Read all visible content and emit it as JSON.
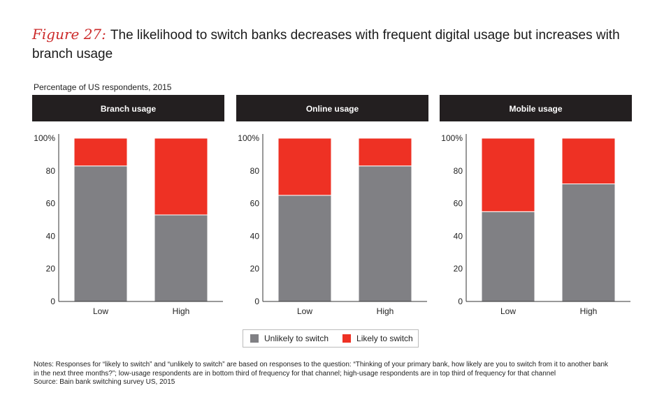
{
  "title": {
    "figure_label": "Figure 27:",
    "text": "The likelihood to switch banks decreases with frequent digital usage but increases with branch usage"
  },
  "subtitle": "Percentage of US respondents, 2015",
  "colors": {
    "unlikely": "#808084",
    "likely": "#ee3124",
    "header_bg": "#231f20",
    "header_text": "#ffffff",
    "axis": "#333333"
  },
  "legend": {
    "unlikely_label": "Unlikely to switch",
    "likely_label": "Likely to switch"
  },
  "chart_data": [
    {
      "type": "bar",
      "stacked": true,
      "title": "Branch usage",
      "categories": [
        "Low",
        "High"
      ],
      "series": [
        {
          "name": "Unlikely to switch",
          "values": [
            83,
            53
          ]
        },
        {
          "name": "Likely to switch",
          "values": [
            17,
            47
          ]
        }
      ],
      "ylim": [
        0,
        100
      ],
      "yticks": [
        0,
        20,
        40,
        60,
        80,
        100
      ],
      "ytick_labels": [
        "0",
        "20",
        "40",
        "60",
        "80",
        "100%"
      ]
    },
    {
      "type": "bar",
      "stacked": true,
      "title": "Online usage",
      "categories": [
        "Low",
        "High"
      ],
      "series": [
        {
          "name": "Unlikely to switch",
          "values": [
            65,
            83
          ]
        },
        {
          "name": "Likely to switch",
          "values": [
            35,
            17
          ]
        }
      ],
      "ylim": [
        0,
        100
      ],
      "yticks": [
        0,
        20,
        40,
        60,
        80,
        100
      ],
      "ytick_labels": [
        "0",
        "20",
        "40",
        "60",
        "80",
        "100%"
      ]
    },
    {
      "type": "bar",
      "stacked": true,
      "title": "Mobile usage",
      "categories": [
        "Low",
        "High"
      ],
      "series": [
        {
          "name": "Unlikely to switch",
          "values": [
            55,
            72
          ]
        },
        {
          "name": "Likely to switch",
          "values": [
            45,
            28
          ]
        }
      ],
      "ylim": [
        0,
        100
      ],
      "yticks": [
        0,
        20,
        40,
        60,
        80,
        100
      ],
      "ytick_labels": [
        "0",
        "20",
        "40",
        "60",
        "80",
        "100%"
      ]
    }
  ],
  "notes": {
    "text": "Notes: Responses for “likely to switch” and “unlikely to switch” are based on responses to the question: “Thinking of your primary bank, how likely are you to switch from it to another bank in the next three months?”; low-usage respondents are in bottom third of frequency for that channel; high-usage respondents are in top third of frequency for that channel",
    "source": "Source: Bain bank switching survey US, 2015"
  }
}
